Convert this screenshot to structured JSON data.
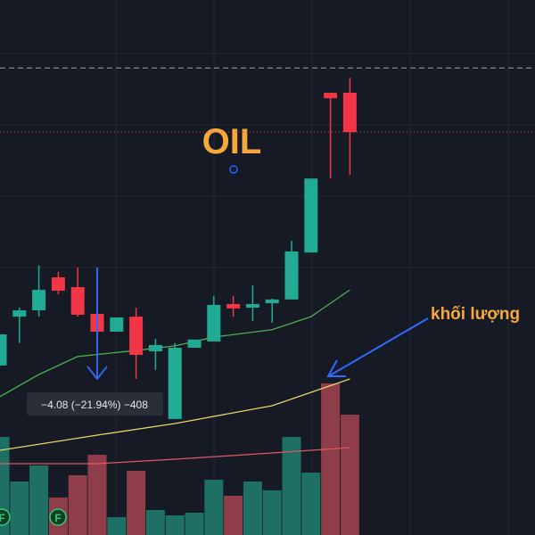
{
  "chart_data": {
    "type": "candlestick",
    "title": "OIL",
    "annotation": "khối lượng",
    "measure": {
      "from": 18.6,
      "to": 14.52,
      "label": "−4.08 (−21.94%) −408",
      "index": 5
    },
    "open": [
      15.01,
      16.8,
      17.03,
      18.24,
      17.88,
      16.9,
      16.25,
      16.8,
      15.53,
      13.05,
      15.66,
      15.89,
      17.26,
      17.13,
      17.29,
      17.43,
      19.15,
      25.0,
      25.0
    ],
    "close": [
      16.15,
      17.03,
      17.78,
      17.75,
      16.87,
      16.25,
      16.77,
      15.4,
      15.76,
      15.66,
      15.96,
      17.23,
      17.1,
      17.26,
      17.43,
      19.19,
      21.86,
      24.8,
      23.56
    ],
    "high": [
      16.15,
      17.13,
      18.67,
      18.44,
      18.6,
      18.6,
      16.77,
      17.13,
      15.99,
      15.83,
      15.96,
      17.56,
      17.56,
      17.95,
      17.46,
      19.58,
      21.86,
      25.0,
      25.55
    ],
    "low": [
      15.01,
      15.83,
      16.8,
      17.62,
      16.8,
      15.5,
      16.25,
      14.52,
      14.85,
      13.05,
      15.66,
      15.89,
      16.8,
      16.64,
      16.58,
      17.43,
      19.15,
      21.86,
      21.99
    ],
    "volume": [
      110,
      60,
      78,
      42,
      67,
      90,
      20,
      72,
      28,
      22,
      25,
      62,
      44,
      60,
      50,
      110,
      70,
      170,
      135
    ],
    "ylim": [
      8.8,
      28.4
    ],
    "vlim": [
      0,
      200
    ],
    "high_line": 25.91,
    "price_ma": {
      "color": "#4caf50",
      "x": [
        0,
        2,
        4,
        7,
        9,
        11,
        14,
        16,
        18
      ],
      "values": [
        13.87,
        14.68,
        15.34,
        15.56,
        15.73,
        16.05,
        16.32,
        16.8,
        17.78
      ]
    },
    "volume_ma": [
      {
        "color": "#e6d36a",
        "x": [
          0,
          5,
          9,
          14,
          16,
          18
        ],
        "values": [
          95,
          112,
          125,
          145,
          160,
          175
        ]
      },
      {
        "color": "#e05565",
        "x": [
          0,
          5,
          9,
          14,
          18
        ],
        "values": [
          80,
          80,
          85,
          92,
          98
        ]
      }
    ],
    "up_color": "#22ab94",
    "down_color": "#f23645",
    "up_volume_color": "#1e6f64",
    "down_volume_color": "#8f3d48"
  }
}
